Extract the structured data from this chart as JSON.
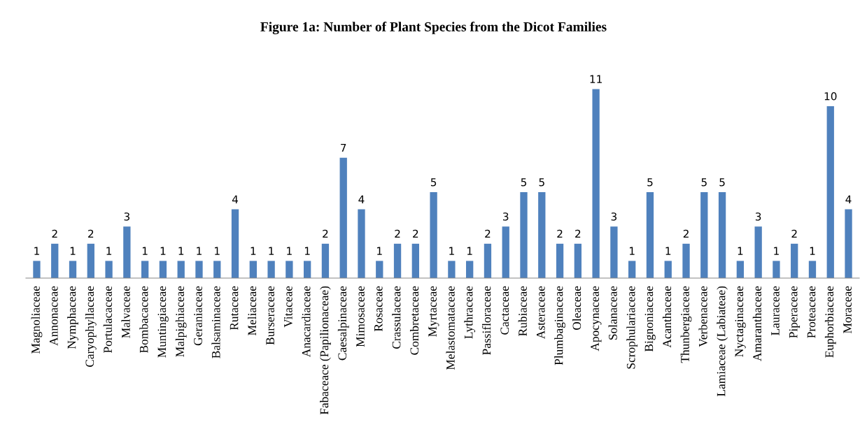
{
  "chart_data": {
    "type": "bar",
    "title": "Figure 1a: Number of Plant Species from the Dicot Families",
    "categories": [
      "Magnoliaceae",
      "Annonaceae",
      "Nymphaceae",
      "Caryophyllaceae",
      "Portulacaceae",
      "Malvaceae",
      "Bombacaceae",
      "Muntingiaceae",
      "Malpighiaceae",
      "Geraniaceae",
      "Balsaminaceae",
      "Rutaceae",
      "Meliaceae",
      "Burseraceae",
      "Vitaceae",
      "Anacardiaceae",
      "Fabaceace (Papilionaceae)",
      "Caesalpinaceae",
      "Mimosaceae",
      "Rosaceae",
      "Crassulaceae",
      "Combretaceae",
      "Myrtaceae",
      "Melastomataceae",
      "Lythraceae",
      "Passifloraceae",
      "Cactaceae",
      "Rubiaceae",
      "Asteraceae",
      "Plumbaginaceae",
      "Oleaceae",
      "Apocynaceae",
      "Solanaceae",
      "Scrophulariaceae",
      "Bignoniaceae",
      "Acanthaceae",
      "Thunbergiaceae",
      "Verbenaceae",
      "Lamiaceae (Labiateae)",
      "Nyctaginaceae",
      "Amaranthaceae",
      "Lauraceae",
      "Piperaceae",
      "Proteaceae",
      "Euphorbiaceae",
      "Moraceae"
    ],
    "values": [
      1,
      2,
      1,
      2,
      1,
      3,
      1,
      1,
      1,
      1,
      1,
      4,
      1,
      1,
      1,
      1,
      2,
      7,
      4,
      1,
      2,
      2,
      5,
      1,
      1,
      2,
      3,
      5,
      5,
      2,
      2,
      11,
      3,
      1,
      5,
      1,
      2,
      5,
      5,
      1,
      3,
      1,
      2,
      1,
      10,
      4
    ],
    "color": "#4f81bd",
    "data_labels": true,
    "grid": false,
    "legend": false
  }
}
